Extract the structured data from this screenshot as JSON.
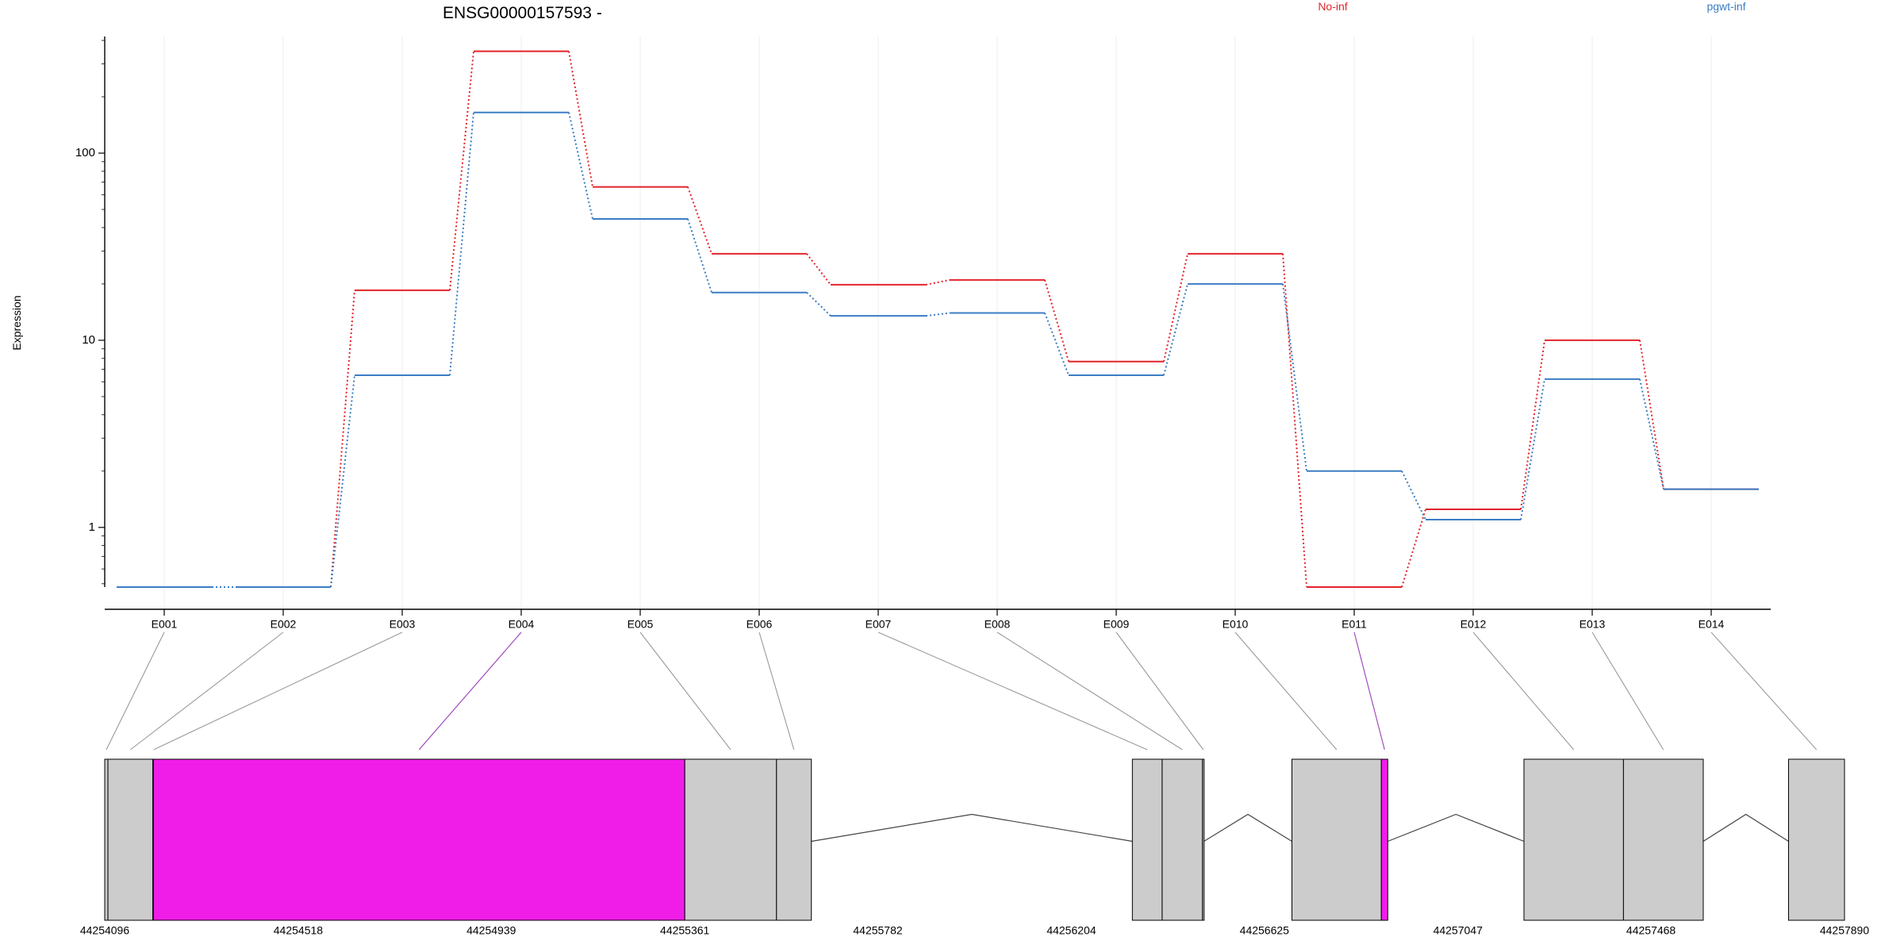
{
  "title": "ENSG00000157593 -",
  "legend": [
    {
      "label": "No-inf",
      "color": "#e3242b"
    },
    {
      "label": "pgwt-inf",
      "color": "#3b7dc4"
    }
  ],
  "colors": {
    "exon_fill": "#cccccc",
    "highlight_fill": "#f01de8",
    "highlight_connector": "#9a3fb8",
    "connector": "#999999",
    "grid": "#ececec"
  },
  "chart_data": {
    "type": "line",
    "title": "ENSG00000157593 -",
    "xlabel": "",
    "ylabel": "Expression",
    "yscale": "log",
    "ylim": [
      0.48,
      420
    ],
    "yticks": [
      1,
      10,
      100
    ],
    "ytick_labels": [
      "1",
      "10",
      "100"
    ],
    "categories": [
      "E001",
      "E002",
      "E003",
      "E004",
      "E005",
      "E006",
      "E007",
      "E008",
      "E009",
      "E010",
      "E011",
      "E012",
      "E013",
      "E014"
    ],
    "series": [
      {
        "name": "No-inf",
        "color": "#e3242b",
        "values": [
          0.48,
          0.48,
          18.5,
          350,
          66,
          29,
          19.8,
          21,
          7.7,
          29,
          0.48,
          1.25,
          10,
          1.6
        ]
      },
      {
        "name": "pgwt-inf",
        "color": "#3b7dc4",
        "values": [
          0.48,
          0.48,
          6.5,
          165,
          44.5,
          18,
          13.5,
          14,
          6.5,
          20,
          2.0,
          1.1,
          6.2,
          1.6
        ]
      }
    ],
    "grid": "vertical",
    "legend_position": "top-right"
  },
  "gene_model": {
    "coordinate_labels": [
      "44254096",
      "44254518",
      "44254939",
      "44255361",
      "44255782",
      "44256204",
      "44256625",
      "44257047",
      "44257468",
      "44257890"
    ],
    "exons": [
      {
        "id": "E001",
        "start": 44254096,
        "end": 44254103,
        "highlight": false
      },
      {
        "id": "E002",
        "start": 44254103,
        "end": 44254201,
        "highlight": false
      },
      {
        "id": "E003",
        "start": 44254201,
        "end": 44254202,
        "highlight": false
      },
      {
        "id": "E004",
        "start": 44254202,
        "end": 44255361,
        "highlight": true
      },
      {
        "id": "E005",
        "start": 44255361,
        "end": 44255561,
        "highlight": false
      },
      {
        "id": "E006",
        "start": 44255561,
        "end": 44255637,
        "highlight": false
      },
      {
        "id": "E007",
        "start": 44256337,
        "end": 44256402,
        "highlight": false
      },
      {
        "id": "E008",
        "start": 44256402,
        "end": 44256490,
        "highlight": false
      },
      {
        "id": "E009",
        "start": 44256490,
        "end": 44256493,
        "highlight": false
      },
      {
        "id": "E010",
        "start": 44256685,
        "end": 44256880,
        "highlight": false
      },
      {
        "id": "E011",
        "start": 44256880,
        "end": 44256894,
        "highlight": true
      },
      {
        "id": "E012",
        "start": 44257191,
        "end": 44257408,
        "highlight": false
      },
      {
        "id": "E013",
        "start": 44257408,
        "end": 44257582,
        "highlight": false
      },
      {
        "id": "E014",
        "start": 44257768,
        "end": 44257890,
        "highlight": false
      }
    ],
    "introns": [
      {
        "start": 44255637,
        "end": 44256337
      },
      {
        "start": 44256493,
        "end": 44256685
      },
      {
        "start": 44256894,
        "end": 44257191
      },
      {
        "start": 44257582,
        "end": 44257768
      }
    ]
  }
}
